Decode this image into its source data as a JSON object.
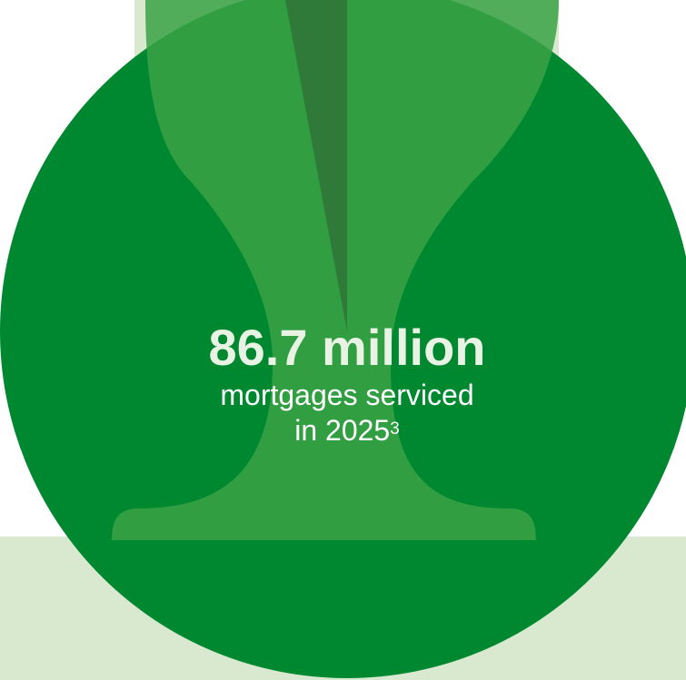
{
  "colors": {
    "background": "#ffffff",
    "pale_green": "#d8e9cf",
    "circle_green": "#008830",
    "shape_green": "#3aa245",
    "slice_green": "#2f7a38",
    "text_white": "#ffffff",
    "value_text": "#e8f3e4"
  },
  "stat": {
    "value": "86.7 million",
    "label_line1": "mortgages serviced",
    "label_line2_text": "in 2025",
    "label_line2_footnote": "3"
  }
}
